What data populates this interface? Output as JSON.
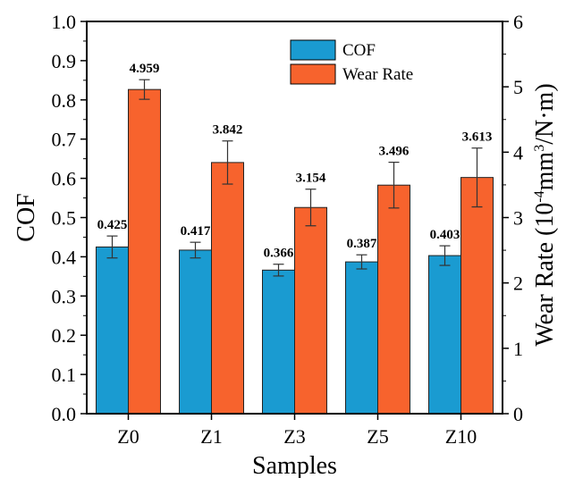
{
  "chart_data": {
    "type": "bar",
    "xlabel": "Samples",
    "ylabel": "COF",
    "y2label": "Wear Rate (10",
    "y2label_sup": "-4",
    "y2label_mid": "mm",
    "y2label_sup2": "3",
    "y2label_end": "/N·m)",
    "categories": [
      "Z0",
      "Z1",
      "Z3",
      "Z5",
      "Z10"
    ],
    "ylim": [
      0,
      1.0
    ],
    "y2lim": [
      0,
      6
    ],
    "yticks": [
      "0.0",
      "0.1",
      "0.2",
      "0.3",
      "0.4",
      "0.5",
      "0.6",
      "0.7",
      "0.8",
      "0.9",
      "1.0"
    ],
    "y2ticks": [
      "0",
      "1",
      "2",
      "3",
      "4",
      "5",
      "6"
    ],
    "legend_position": "top-center",
    "series": [
      {
        "name": "COF",
        "axis": "left",
        "color": "#1a9bd1",
        "values": [
          0.425,
          0.417,
          0.366,
          0.387,
          0.403
        ],
        "labels": [
          "0.425",
          "0.417",
          "0.366",
          "0.387",
          "0.403"
        ],
        "errors": [
          0.028,
          0.02,
          0.015,
          0.018,
          0.025
        ]
      },
      {
        "name": "Wear Rate",
        "axis": "right",
        "color": "#f7632d",
        "values": [
          4.959,
          3.842,
          3.154,
          3.496,
          3.613
        ],
        "labels": [
          "4.959",
          "3.842",
          "3.154",
          "3.496",
          "3.613"
        ],
        "errors": [
          0.15,
          0.33,
          0.28,
          0.35,
          0.45
        ]
      }
    ]
  }
}
